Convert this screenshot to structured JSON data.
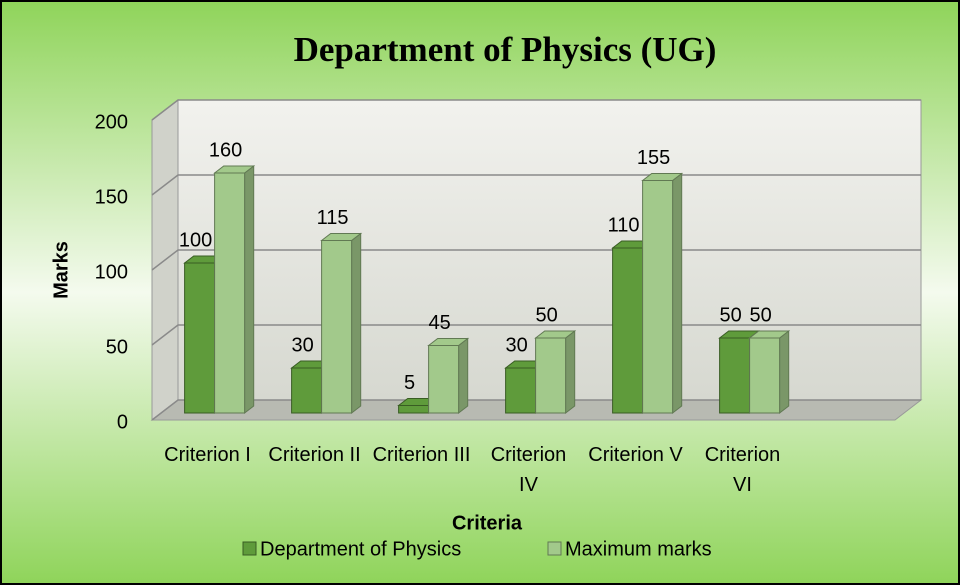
{
  "chart_data": {
    "type": "bar3d",
    "title": "Department of Physics (UG)",
    "x_label": "Criteria",
    "y_label": "Marks",
    "categories": [
      "Criterion I",
      "Criterion II",
      "Criterion III",
      "Criterion IV",
      "Criterion V",
      "Criterion VI"
    ],
    "series": [
      {
        "name": "Department of Physics",
        "color": "#5f9b3b",
        "values": [
          100,
          30,
          5,
          30,
          110,
          50
        ]
      },
      {
        "name": "Maximum marks",
        "color": "#a2c98b",
        "values": [
          160,
          115,
          45,
          50,
          155,
          50
        ]
      }
    ],
    "ylim": [
      0,
      200
    ],
    "yticks": [
      0,
      50,
      100,
      150,
      200
    ],
    "grid": true,
    "legend": "bottom"
  }
}
